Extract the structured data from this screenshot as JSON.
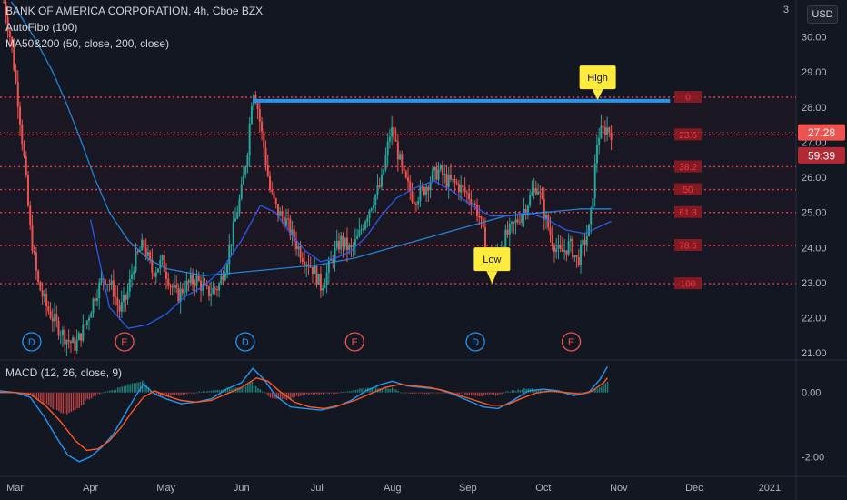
{
  "legend": {
    "symbol_line": "BANK OF AMERICA CORPORATION, 4h, Cboe BZX",
    "autofibo": "AutoFibo (100)",
    "ma": "MA50&200 (50, close, 200, close)",
    "macd": "MACD (12, 26, close, 9)"
  },
  "currency_button": "USD",
  "colors": {
    "background": "#131722",
    "up_candle": "#26a69a",
    "down_candle": "#ef5350",
    "ma50": "#2962ff",
    "ma200": "#2196f3",
    "fibo": "#f23645",
    "resistance": "#2196f3",
    "callout": "#ffeb3b",
    "macd_line": "#2196f3",
    "signal_line": "#ff5722"
  },
  "chart_data": [
    {
      "type": "candlestick",
      "x_axis": {
        "ticks": [
          "Mar",
          "Apr",
          "May",
          "Jun",
          "Jul",
          "Aug",
          "Sep",
          "Oct",
          "Nov",
          "Dec",
          "2021"
        ],
        "tick_months": [
          2,
          3,
          4,
          5,
          6,
          7,
          8,
          9,
          10,
          11,
          12
        ],
        "range_months": [
          1.8,
          12.35
        ]
      },
      "y_axis": {
        "ticks": [
          "30.00",
          "29.00",
          "28.00",
          "27.00",
          "26.00",
          "25.00",
          "24.00",
          "23.00",
          "22.00",
          "21.00"
        ],
        "tick_values": [
          30,
          29,
          28,
          27,
          26,
          25,
          24,
          23,
          22,
          21
        ],
        "range": [
          20.85,
          31.05
        ],
        "top_partial_label": "3"
      },
      "price_path": [
        [
          1.85,
          31.0
        ],
        [
          1.95,
          29.8
        ],
        [
          2.05,
          28.0
        ],
        [
          2.12,
          26.5
        ],
        [
          2.2,
          24.5
        ],
        [
          2.3,
          23.0
        ],
        [
          2.42,
          22.3
        ],
        [
          2.55,
          21.8
        ],
        [
          2.68,
          21.4
        ],
        [
          2.8,
          21.2
        ],
        [
          2.95,
          21.9
        ],
        [
          3.05,
          22.6
        ],
        [
          3.18,
          23.2
        ],
        [
          3.3,
          22.8
        ],
        [
          3.38,
          22.2
        ],
        [
          3.48,
          22.6
        ],
        [
          3.58,
          23.6
        ],
        [
          3.7,
          24.1
        ],
        [
          3.82,
          23.3
        ],
        [
          3.95,
          23.6
        ],
        [
          4.05,
          23.0
        ],
        [
          4.15,
          22.6
        ],
        [
          4.25,
          22.9
        ],
        [
          4.4,
          23.1
        ],
        [
          4.55,
          22.7
        ],
        [
          4.7,
          22.9
        ],
        [
          4.8,
          23.6
        ],
        [
          4.9,
          24.6
        ],
        [
          5.0,
          25.6
        ],
        [
          5.08,
          26.8
        ],
        [
          5.15,
          28.6
        ],
        [
          5.2,
          28.2
        ],
        [
          5.3,
          26.8
        ],
        [
          5.38,
          25.6
        ],
        [
          5.48,
          25.0
        ],
        [
          5.58,
          24.8
        ],
        [
          5.68,
          24.3
        ],
        [
          5.8,
          23.8
        ],
        [
          5.95,
          23.4
        ],
        [
          6.05,
          22.9
        ],
        [
          6.12,
          23.2
        ],
        [
          6.22,
          23.8
        ],
        [
          6.32,
          24.2
        ],
        [
          6.45,
          23.9
        ],
        [
          6.55,
          24.3
        ],
        [
          6.65,
          24.9
        ],
        [
          6.75,
          25.4
        ],
        [
          6.85,
          25.8
        ],
        [
          6.98,
          27.4
        ],
        [
          7.05,
          26.9
        ],
        [
          7.15,
          26.0
        ],
        [
          7.28,
          25.4
        ],
        [
          7.4,
          25.6
        ],
        [
          7.52,
          26.0
        ],
        [
          7.62,
          26.2
        ],
        [
          7.72,
          25.9
        ],
        [
          7.85,
          25.8
        ],
        [
          7.95,
          25.6
        ],
        [
          8.05,
          25.4
        ],
        [
          8.15,
          24.9
        ],
        [
          8.25,
          23.9
        ],
        [
          8.32,
          23.5
        ],
        [
          8.4,
          23.9
        ],
        [
          8.5,
          24.3
        ],
        [
          8.6,
          24.6
        ],
        [
          8.72,
          25.0
        ],
        [
          8.82,
          25.4
        ],
        [
          8.92,
          25.8
        ],
        [
          9.02,
          24.9
        ],
        [
          9.12,
          24.2
        ],
        [
          9.22,
          23.8
        ],
        [
          9.35,
          24.1
        ],
        [
          9.45,
          23.6
        ],
        [
          9.55,
          24.2
        ],
        [
          9.62,
          24.6
        ],
        [
          9.72,
          27.2
        ],
        [
          9.85,
          27.4
        ],
        [
          9.9,
          27.28
        ]
      ],
      "ma50_path": [
        [
          3.0,
          24.8
        ],
        [
          3.25,
          22.3
        ],
        [
          3.5,
          21.7
        ],
        [
          3.75,
          21.8
        ],
        [
          4.0,
          22.1
        ],
        [
          4.25,
          22.6
        ],
        [
          4.5,
          22.9
        ],
        [
          4.75,
          23.4
        ],
        [
          5.0,
          24.2
        ],
        [
          5.25,
          25.2
        ],
        [
          5.45,
          25.0
        ],
        [
          5.65,
          24.4
        ],
        [
          5.85,
          23.9
        ],
        [
          6.05,
          23.6
        ],
        [
          6.25,
          23.7
        ],
        [
          6.45,
          23.9
        ],
        [
          6.65,
          24.3
        ],
        [
          6.85,
          24.9
        ],
        [
          7.05,
          25.4
        ],
        [
          7.3,
          25.7
        ],
        [
          7.55,
          25.9
        ],
        [
          7.8,
          25.6
        ],
        [
          8.05,
          25.2
        ],
        [
          8.3,
          24.9
        ],
        [
          8.55,
          24.9
        ],
        [
          8.8,
          25.0
        ],
        [
          9.05,
          24.8
        ],
        [
          9.3,
          24.5
        ],
        [
          9.55,
          24.4
        ],
        [
          9.75,
          24.6
        ],
        [
          9.9,
          24.75
        ]
      ],
      "ma200_path": [
        [
          1.95,
          31.0
        ],
        [
          2.25,
          30.0
        ],
        [
          2.5,
          29.0
        ],
        [
          2.7,
          28.0
        ],
        [
          2.88,
          27.0
        ],
        [
          3.05,
          26.0
        ],
        [
          3.25,
          25.0
        ],
        [
          3.5,
          24.2
        ],
        [
          3.75,
          23.7
        ],
        [
          4.0,
          23.4
        ],
        [
          4.5,
          23.2
        ],
        [
          5.0,
          23.3
        ],
        [
          5.5,
          23.4
        ],
        [
          6.0,
          23.5
        ],
        [
          6.5,
          23.7
        ],
        [
          7.0,
          24.0
        ],
        [
          7.5,
          24.3
        ],
        [
          8.0,
          24.6
        ],
        [
          8.5,
          24.9
        ],
        [
          9.0,
          25.0
        ],
        [
          9.5,
          25.1
        ],
        [
          9.9,
          25.1
        ]
      ],
      "fibo_levels": [
        {
          "label": "0",
          "price": 28.28
        },
        {
          "label": "23.6",
          "price": 27.21
        },
        {
          "label": "38.2",
          "price": 26.3
        },
        {
          "label": "50",
          "price": 25.65
        },
        {
          "label": "61.8",
          "price": 25.0
        },
        {
          "label": "78.6",
          "price": 24.06
        },
        {
          "label": "100",
          "price": 22.97
        }
      ],
      "resistance_line": {
        "price": 28.18,
        "from_month": 5.15,
        "to_month": 10.68
      },
      "callouts": [
        {
          "text": "High",
          "month": 9.72,
          "price": 28.2,
          "direction": "down"
        },
        {
          "text": "Low",
          "month": 8.32,
          "price": 22.97,
          "direction": "up"
        }
      ],
      "events": [
        {
          "letter": "D",
          "month": 2.22
        },
        {
          "letter": "E",
          "month": 3.45
        },
        {
          "letter": "D",
          "month": 5.05
        },
        {
          "letter": "E",
          "month": 6.5
        },
        {
          "letter": "D",
          "month": 8.1
        },
        {
          "letter": "E",
          "month": 9.37
        }
      ],
      "last_price": {
        "value": "27.28",
        "price": 27.28
      },
      "countdown": {
        "value": "59:39",
        "price": 26.73
      }
    },
    {
      "type": "macd",
      "y_axis": {
        "ticks": [
          "0.00",
          "-2.00"
        ],
        "tick_values": [
          0,
          -2
        ],
        "range": [
          -2.55,
          0.95
        ]
      },
      "macd_path": [
        [
          1.8,
          0.05
        ],
        [
          2.0,
          0.0
        ],
        [
          2.2,
          -0.15
        ],
        [
          2.4,
          -0.8
        ],
        [
          2.55,
          -1.4
        ],
        [
          2.7,
          -1.95
        ],
        [
          2.85,
          -2.15
        ],
        [
          3.0,
          -2.0
        ],
        [
          3.15,
          -1.7
        ],
        [
          3.3,
          -1.3
        ],
        [
          3.45,
          -0.7
        ],
        [
          3.6,
          -0.1
        ],
        [
          3.7,
          0.25
        ],
        [
          3.85,
          -0.05
        ],
        [
          4.0,
          -0.2
        ],
        [
          4.2,
          -0.35
        ],
        [
          4.4,
          -0.3
        ],
        [
          4.6,
          -0.2
        ],
        [
          4.8,
          0.1
        ],
        [
          5.0,
          0.3
        ],
        [
          5.15,
          0.75
        ],
        [
          5.3,
          0.4
        ],
        [
          5.45,
          -0.1
        ],
        [
          5.65,
          -0.45
        ],
        [
          5.85,
          -0.5
        ],
        [
          6.05,
          -0.55
        ],
        [
          6.25,
          -0.45
        ],
        [
          6.45,
          -0.25
        ],
        [
          6.65,
          0.05
        ],
        [
          6.85,
          0.25
        ],
        [
          7.0,
          0.35
        ],
        [
          7.2,
          0.2
        ],
        [
          7.4,
          0.15
        ],
        [
          7.6,
          0.1
        ],
        [
          7.8,
          -0.05
        ],
        [
          8.0,
          -0.25
        ],
        [
          8.2,
          -0.45
        ],
        [
          8.4,
          -0.5
        ],
        [
          8.6,
          -0.25
        ],
        [
          8.8,
          0.05
        ],
        [
          9.0,
          0.1
        ],
        [
          9.2,
          0.05
        ],
        [
          9.4,
          -0.1
        ],
        [
          9.6,
          0.0
        ],
        [
          9.75,
          0.4
        ],
        [
          9.85,
          0.8
        ]
      ],
      "signal_path": [
        [
          1.8,
          0.0
        ],
        [
          2.0,
          0.0
        ],
        [
          2.2,
          -0.05
        ],
        [
          2.4,
          -0.4
        ],
        [
          2.6,
          -0.9
        ],
        [
          2.8,
          -1.5
        ],
        [
          2.95,
          -1.8
        ],
        [
          3.1,
          -1.75
        ],
        [
          3.25,
          -1.5
        ],
        [
          3.4,
          -1.1
        ],
        [
          3.55,
          -0.6
        ],
        [
          3.7,
          -0.15
        ],
        [
          3.85,
          0.05
        ],
        [
          4.0,
          -0.1
        ],
        [
          4.2,
          -0.25
        ],
        [
          4.4,
          -0.3
        ],
        [
          4.6,
          -0.25
        ],
        [
          4.8,
          -0.05
        ],
        [
          5.0,
          0.15
        ],
        [
          5.2,
          0.45
        ],
        [
          5.35,
          0.35
        ],
        [
          5.5,
          0.05
        ],
        [
          5.7,
          -0.3
        ],
        [
          5.9,
          -0.45
        ],
        [
          6.1,
          -0.5
        ],
        [
          6.3,
          -0.4
        ],
        [
          6.5,
          -0.25
        ],
        [
          6.7,
          -0.05
        ],
        [
          6.9,
          0.15
        ],
        [
          7.1,
          0.25
        ],
        [
          7.3,
          0.2
        ],
        [
          7.5,
          0.15
        ],
        [
          7.7,
          0.05
        ],
        [
          7.9,
          -0.1
        ],
        [
          8.1,
          -0.25
        ],
        [
          8.3,
          -0.4
        ],
        [
          8.5,
          -0.4
        ],
        [
          8.7,
          -0.2
        ],
        [
          8.9,
          -0.02
        ],
        [
          9.1,
          0.05
        ],
        [
          9.3,
          0.0
        ],
        [
          9.5,
          -0.05
        ],
        [
          9.65,
          0.05
        ],
        [
          9.8,
          0.3
        ],
        [
          9.85,
          0.45
        ]
      ]
    }
  ]
}
